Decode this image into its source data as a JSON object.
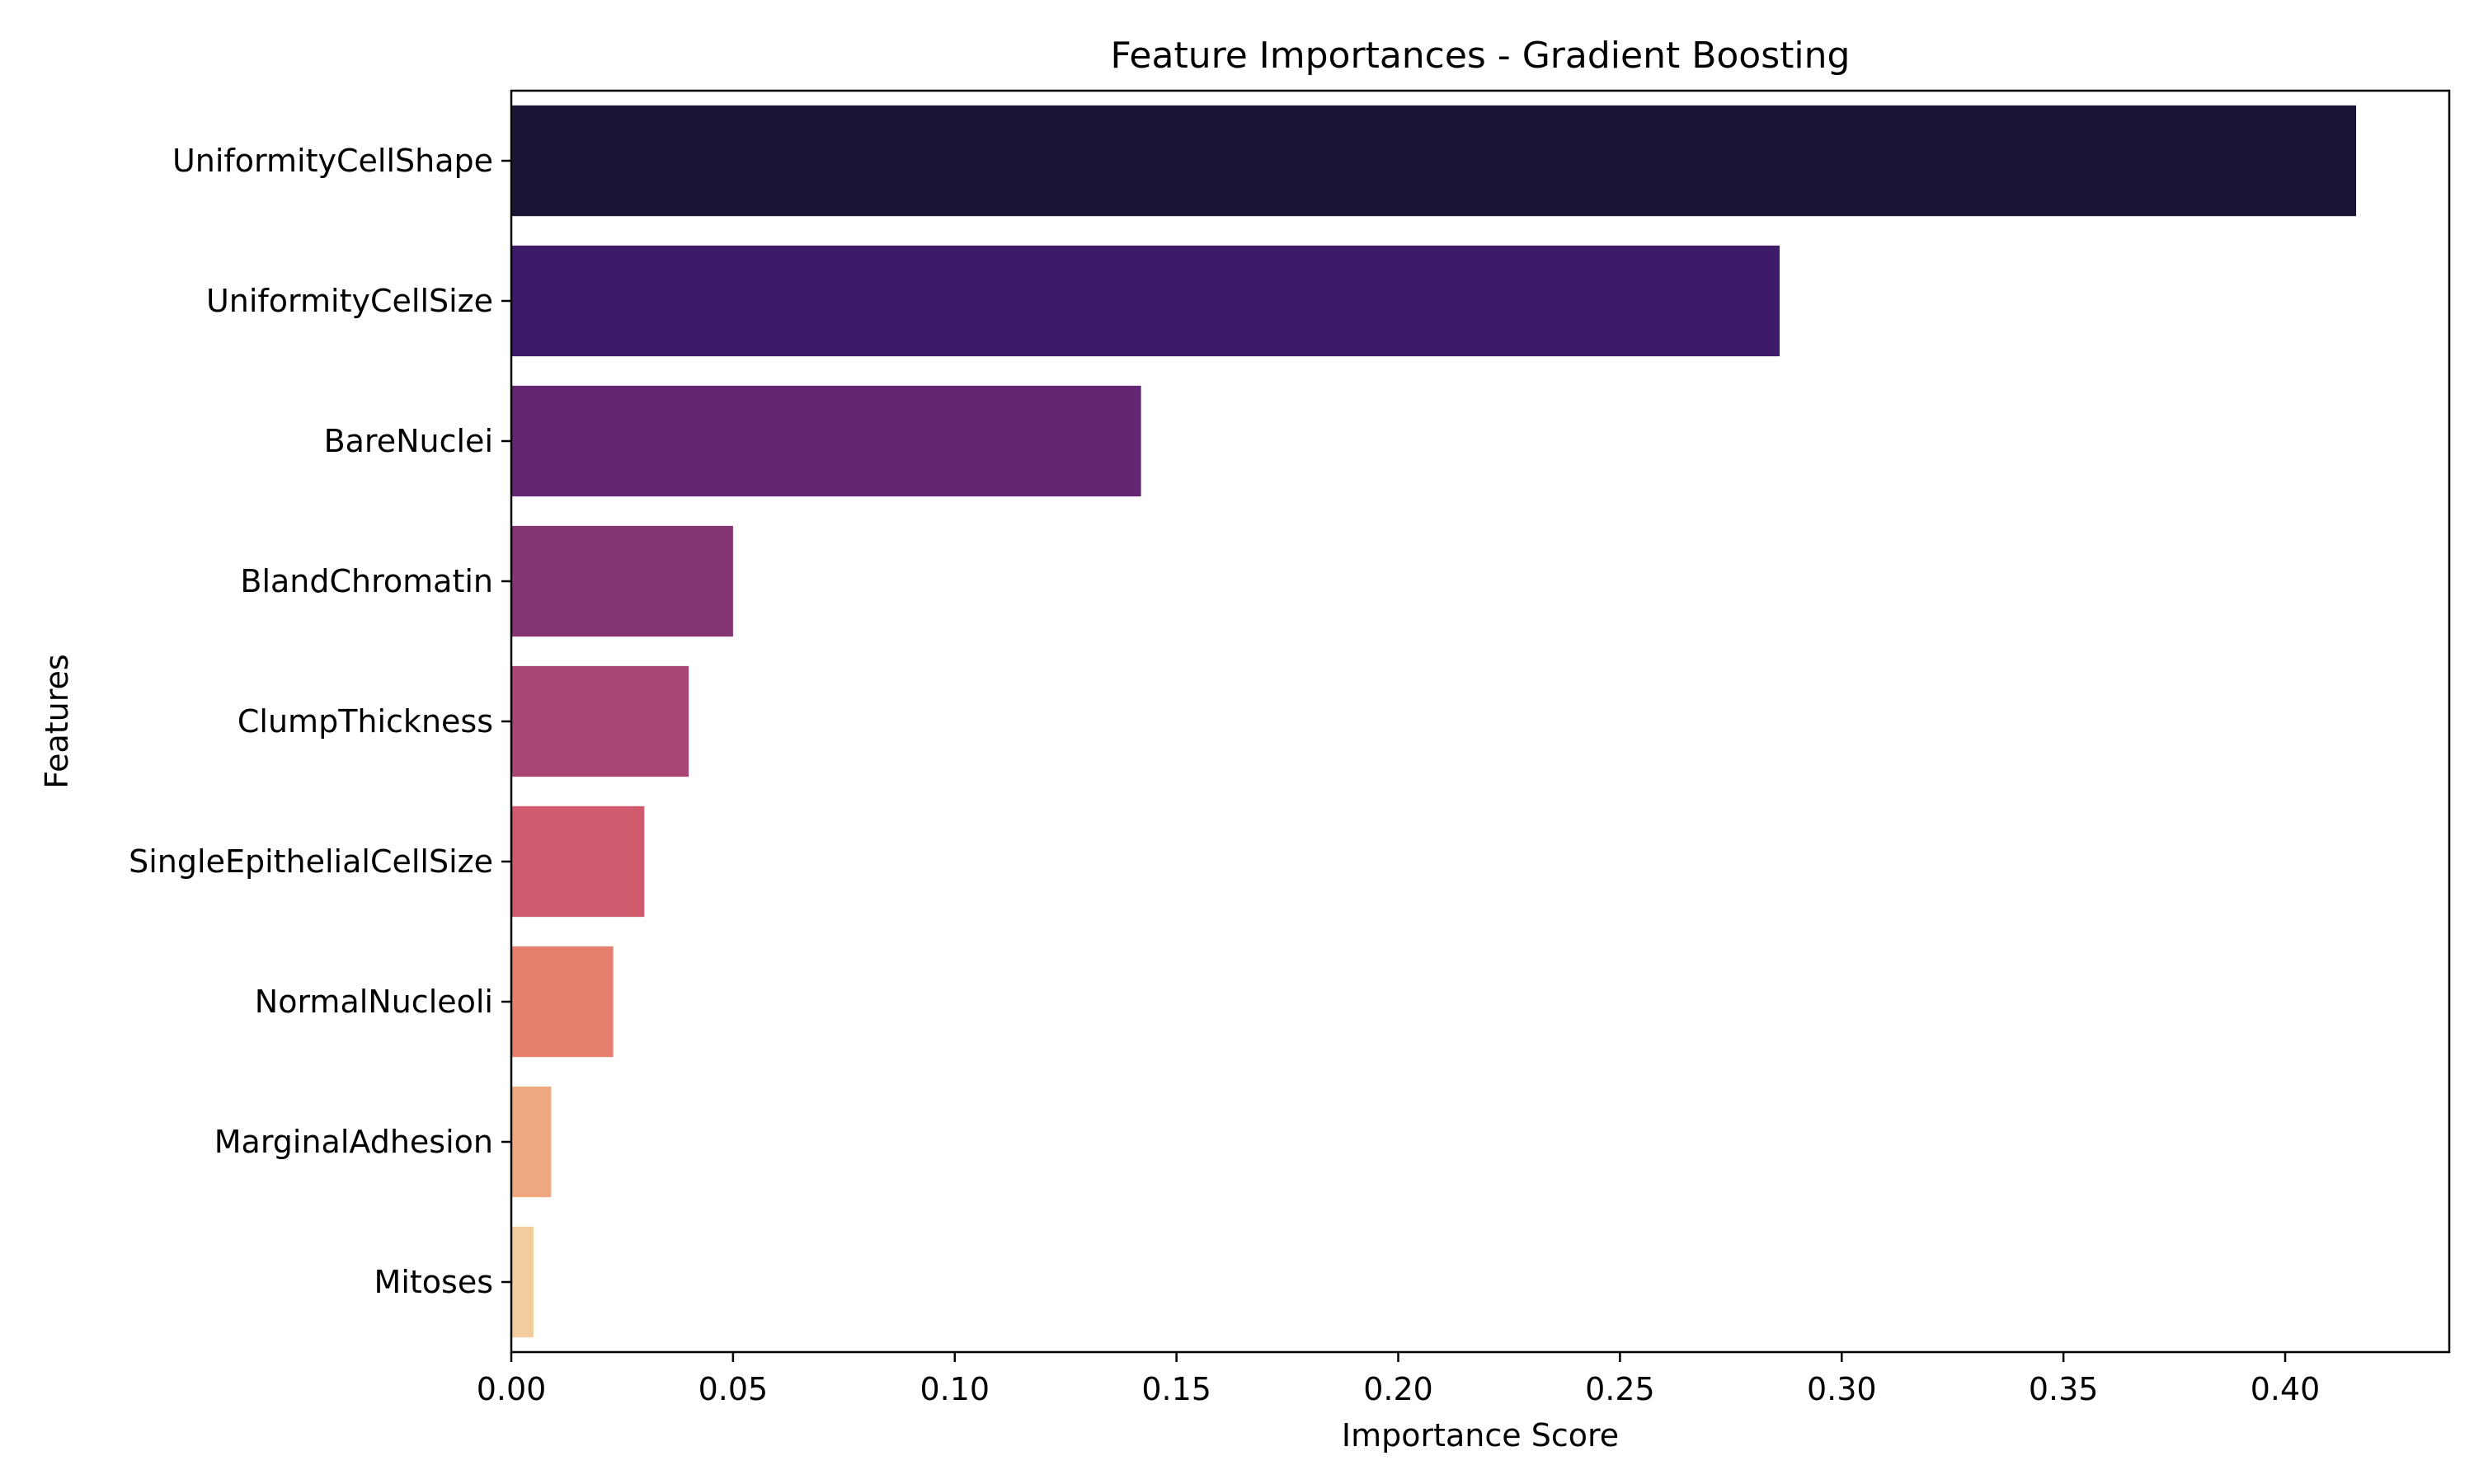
{
  "chart_data": {
    "type": "bar",
    "orientation": "horizontal",
    "title": "Feature Importances - Gradient Boosting",
    "xlabel": "Importance Score",
    "ylabel": "Features",
    "categories": [
      "UniformityCellShape",
      "UniformityCellSize",
      "BareNuclei",
      "BlandChromatin",
      "ClumpThickness",
      "SingleEpithelialCellSize",
      "NormalNucleoli",
      "MarginalAdhesion",
      "Mitoses"
    ],
    "values": [
      0.416,
      0.286,
      0.142,
      0.05,
      0.04,
      0.03,
      0.023,
      0.009,
      0.005
    ],
    "colors": [
      "#1a1534",
      "#3d1b68",
      "#622672",
      "#833673",
      "#a74674",
      "#cf5a6e",
      "#e57f6e",
      "#efa87f",
      "#f2cc9c"
    ],
    "xlim": [
      0.0,
      0.437
    ],
    "xticks": [
      "0.00",
      "0.05",
      "0.10",
      "0.15",
      "0.20",
      "0.25",
      "0.30",
      "0.35",
      "0.40"
    ],
    "grid": false,
    "legend": "none"
  }
}
